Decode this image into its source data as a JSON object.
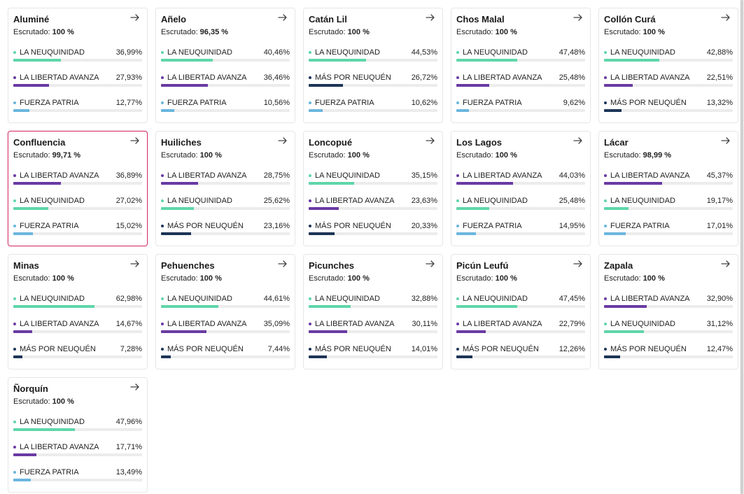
{
  "labels": {
    "escrutado": "Escrutado:"
  },
  "party_colors": {
    "LA NEUQUINIDAD": "#5fd6a9",
    "LA LIBERTAD AVANZA": "#6a3aa3",
    "FUERZA PATRIA": "#6bb6de",
    "MÁS POR NEUQUÉN": "#1d3557"
  },
  "cards": [
    {
      "name": "Aluminé",
      "scrutinized": "100 %",
      "selected": false,
      "results": [
        {
          "party": "LA NEUQUINIDAD",
          "pct": "36,99%",
          "value": 36.99
        },
        {
          "party": "LA LIBERTAD AVANZA",
          "pct": "27,93%",
          "value": 27.93
        },
        {
          "party": "FUERZA PATRIA",
          "pct": "12,77%",
          "value": 12.77
        }
      ]
    },
    {
      "name": "Añelo",
      "scrutinized": "96,35 %",
      "selected": false,
      "results": [
        {
          "party": "LA NEUQUINIDAD",
          "pct": "40,46%",
          "value": 40.46
        },
        {
          "party": "LA LIBERTAD AVANZA",
          "pct": "36,46%",
          "value": 36.46
        },
        {
          "party": "FUERZA PATRIA",
          "pct": "10,56%",
          "value": 10.56
        }
      ]
    },
    {
      "name": "Catán Lil",
      "scrutinized": "100 %",
      "selected": false,
      "results": [
        {
          "party": "LA NEUQUINIDAD",
          "pct": "44,53%",
          "value": 44.53
        },
        {
          "party": "MÁS POR NEUQUÉN",
          "pct": "26,72%",
          "value": 26.72
        },
        {
          "party": "FUERZA PATRIA",
          "pct": "10,62%",
          "value": 10.62
        }
      ]
    },
    {
      "name": "Chos Malal",
      "scrutinized": "100 %",
      "selected": false,
      "results": [
        {
          "party": "LA NEUQUINIDAD",
          "pct": "47,48%",
          "value": 47.48
        },
        {
          "party": "LA LIBERTAD AVANZA",
          "pct": "25,48%",
          "value": 25.48
        },
        {
          "party": "FUERZA PATRIA",
          "pct": "9,62%",
          "value": 9.62
        }
      ]
    },
    {
      "name": "Collón Curá",
      "scrutinized": "100 %",
      "selected": false,
      "results": [
        {
          "party": "LA NEUQUINIDAD",
          "pct": "42,88%",
          "value": 42.88
        },
        {
          "party": "LA LIBERTAD AVANZA",
          "pct": "22,51%",
          "value": 22.51
        },
        {
          "party": "MÁS POR NEUQUÉN",
          "pct": "13,32%",
          "value": 13.32
        }
      ]
    },
    {
      "name": "Confluencia",
      "scrutinized": "99,71 %",
      "selected": true,
      "results": [
        {
          "party": "LA LIBERTAD AVANZA",
          "pct": "36,89%",
          "value": 36.89
        },
        {
          "party": "LA NEUQUINIDAD",
          "pct": "27,02%",
          "value": 27.02
        },
        {
          "party": "FUERZA PATRIA",
          "pct": "15,02%",
          "value": 15.02
        }
      ]
    },
    {
      "name": "Huiliches",
      "scrutinized": "100 %",
      "selected": false,
      "results": [
        {
          "party": "LA LIBERTAD AVANZA",
          "pct": "28,75%",
          "value": 28.75
        },
        {
          "party": "LA NEUQUINIDAD",
          "pct": "25,62%",
          "value": 25.62
        },
        {
          "party": "MÁS POR NEUQUÉN",
          "pct": "23,16%",
          "value": 23.16
        }
      ]
    },
    {
      "name": "Loncopué",
      "scrutinized": "100 %",
      "selected": false,
      "results": [
        {
          "party": "LA NEUQUINIDAD",
          "pct": "35,15%",
          "value": 35.15
        },
        {
          "party": "LA LIBERTAD AVANZA",
          "pct": "23,63%",
          "value": 23.63
        },
        {
          "party": "MÁS POR NEUQUÉN",
          "pct": "20,33%",
          "value": 20.33
        }
      ]
    },
    {
      "name": "Los Lagos",
      "scrutinized": "100 %",
      "selected": false,
      "results": [
        {
          "party": "LA LIBERTAD AVANZA",
          "pct": "44,03%",
          "value": 44.03
        },
        {
          "party": "LA NEUQUINIDAD",
          "pct": "25,48%",
          "value": 25.48
        },
        {
          "party": "FUERZA PATRIA",
          "pct": "14,95%",
          "value": 14.95
        }
      ]
    },
    {
      "name": "Lácar",
      "scrutinized": "98,99 %",
      "selected": false,
      "results": [
        {
          "party": "LA LIBERTAD AVANZA",
          "pct": "45,37%",
          "value": 45.37
        },
        {
          "party": "LA NEUQUINIDAD",
          "pct": "19,17%",
          "value": 19.17
        },
        {
          "party": "FUERZA PATRIA",
          "pct": "17,01%",
          "value": 17.01
        }
      ]
    },
    {
      "name": "Minas",
      "scrutinized": "100 %",
      "selected": false,
      "results": [
        {
          "party": "LA NEUQUINIDAD",
          "pct": "62,98%",
          "value": 62.98
        },
        {
          "party": "LA LIBERTAD AVANZA",
          "pct": "14,67%",
          "value": 14.67
        },
        {
          "party": "MÁS POR NEUQUÉN",
          "pct": "7,28%",
          "value": 7.28
        }
      ]
    },
    {
      "name": "Pehuenches",
      "scrutinized": "100 %",
      "selected": false,
      "results": [
        {
          "party": "LA NEUQUINIDAD",
          "pct": "44,61%",
          "value": 44.61
        },
        {
          "party": "LA LIBERTAD AVANZA",
          "pct": "35,09%",
          "value": 35.09
        },
        {
          "party": "MÁS POR NEUQUÉN",
          "pct": "7,44%",
          "value": 7.44
        }
      ]
    },
    {
      "name": "Picunches",
      "scrutinized": "100 %",
      "selected": false,
      "results": [
        {
          "party": "LA NEUQUINIDAD",
          "pct": "32,88%",
          "value": 32.88
        },
        {
          "party": "LA LIBERTAD AVANZA",
          "pct": "30,11%",
          "value": 30.11
        },
        {
          "party": "MÁS POR NEUQUÉN",
          "pct": "14,01%",
          "value": 14.01
        }
      ]
    },
    {
      "name": "Picún Leufú",
      "scrutinized": "100 %",
      "selected": false,
      "results": [
        {
          "party": "LA NEUQUINIDAD",
          "pct": "47,45%",
          "value": 47.45
        },
        {
          "party": "LA LIBERTAD AVANZA",
          "pct": "22,79%",
          "value": 22.79
        },
        {
          "party": "MÁS POR NEUQUÉN",
          "pct": "12,26%",
          "value": 12.26
        }
      ]
    },
    {
      "name": "Zapala",
      "scrutinized": "100 %",
      "selected": false,
      "results": [
        {
          "party": "LA LIBERTAD AVANZA",
          "pct": "32,90%",
          "value": 32.9
        },
        {
          "party": "LA NEUQUINIDAD",
          "pct": "31,12%",
          "value": 31.12
        },
        {
          "party": "MÁS POR NEUQUÉN",
          "pct": "12,47%",
          "value": 12.47
        }
      ]
    },
    {
      "name": "Ñorquín",
      "scrutinized": "100 %",
      "selected": false,
      "results": [
        {
          "party": "LA NEUQUINIDAD",
          "pct": "47,96%",
          "value": 47.96
        },
        {
          "party": "LA LIBERTAD AVANZA",
          "pct": "17,71%",
          "value": 17.71
        },
        {
          "party": "FUERZA PATRIA",
          "pct": "13,49%",
          "value": 13.49
        }
      ]
    }
  ]
}
